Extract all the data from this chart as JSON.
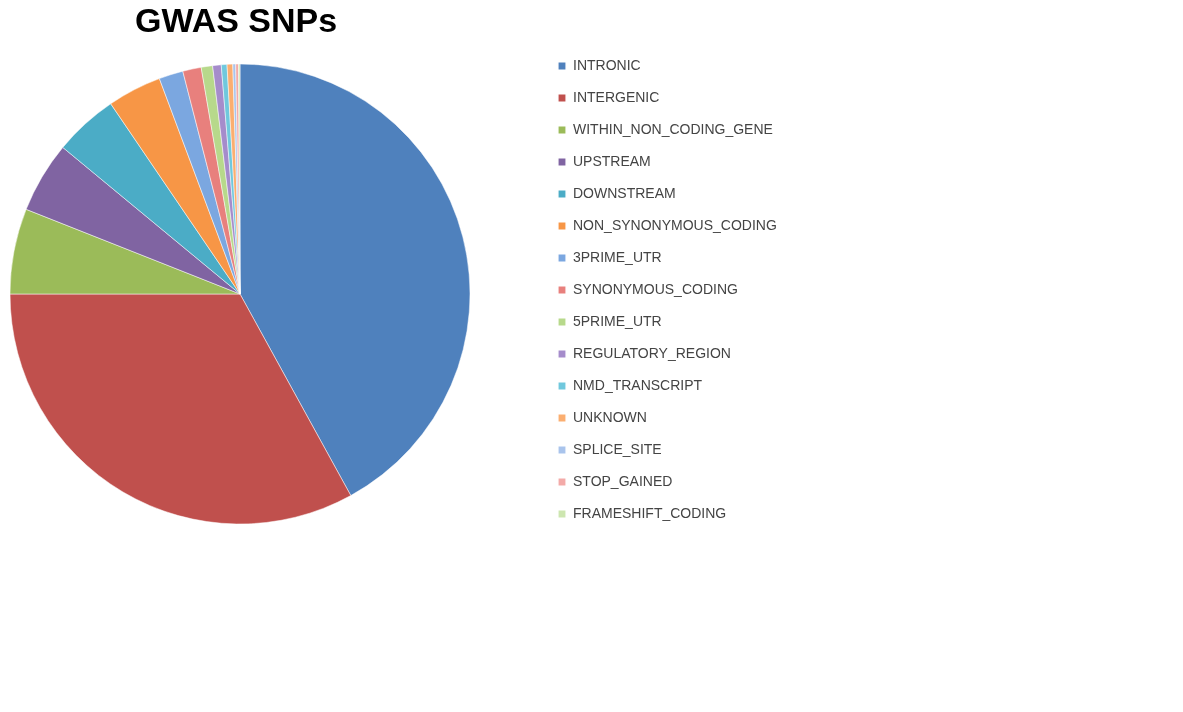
{
  "chart_data": {
    "type": "pie",
    "title": "GWAS SNPs",
    "legend": "right",
    "categories": [
      "INTRONIC",
      "INTERGENIC",
      "WITHIN_NON_CODING_GENE",
      "UPSTREAM",
      "DOWNSTREAM",
      "NON_SYNONYMOUS_CODING",
      "3PRIME_UTR",
      "SYNONYMOUS_CODING",
      "5PRIME_UTR",
      "REGULATORY_REGION",
      "NMD_TRANSCRIPT",
      "UNKNOWN",
      "SPLICE_SITE",
      "STOP_GAINED",
      "FRAMESHIFT_CODING"
    ],
    "values": [
      42,
      33,
      6,
      5,
      4.5,
      3.8,
      1.7,
      1.3,
      0.8,
      0.6,
      0.4,
      0.4,
      0.2,
      0.2,
      0.1
    ],
    "colors": [
      "#4f81bd",
      "#c0504d",
      "#9bbb59",
      "#8064a2",
      "#4bacc6",
      "#f79646",
      "#7ba7e0",
      "#e8807d",
      "#b7d98b",
      "#a58ccb",
      "#70c8dd",
      "#fbae70",
      "#a9c4ec",
      "#f3aaa8",
      "#cde6b0"
    ]
  }
}
